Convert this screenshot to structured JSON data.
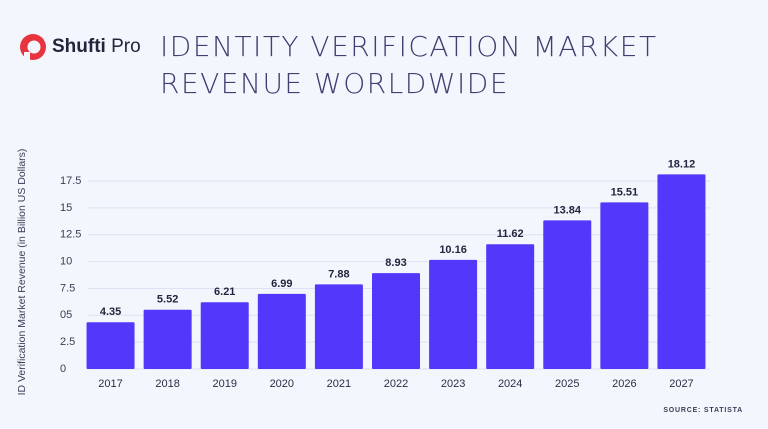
{
  "brand": [
    "Shufti",
    "Pro"
  ],
  "chart_data": {
    "type": "bar",
    "title": [
      "IDENTITY VERIFICATION MARKET",
      "REVENUE WORLDWIDE"
    ],
    "y_label": "ID Verification Market Revenue (in Billion US Dollars)",
    "source": "SOURCE: STATISTA",
    "categories": [
      "2017",
      "2018",
      "2019",
      "2020",
      "2021",
      "2022",
      "2023",
      "2024",
      "2025",
      "2026",
      "2027"
    ],
    "values": [
      4.35,
      5.52,
      6.21,
      6.99,
      7.88,
      8.93,
      10.16,
      11.62,
      13.84,
      15.51,
      18.12
    ],
    "color": "#5138fb",
    "ylim": [
      0,
      18.5
    ],
    "yticks": [
      0,
      2.5,
      {
        "value": 5,
        "label": "05"
      },
      7.5,
      10,
      12.5,
      15,
      17.5
    ],
    "grid": true
  }
}
